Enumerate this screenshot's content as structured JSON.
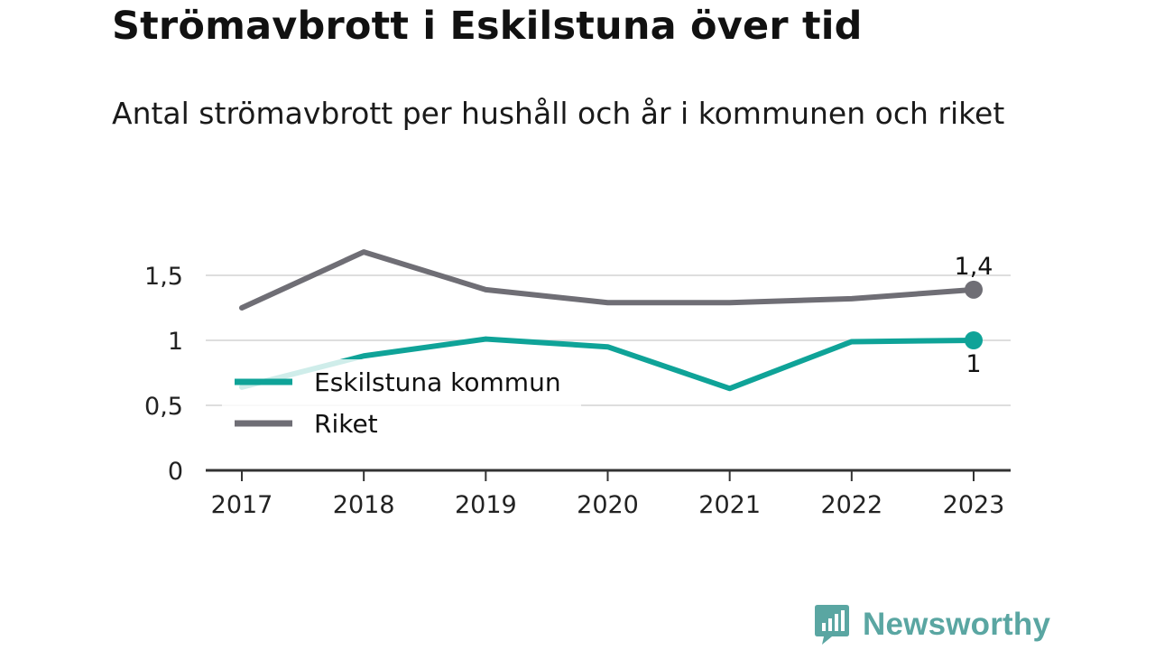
{
  "header": {
    "title": "Strömavbrott i Eskilstuna över tid",
    "subtitle": "Antal strömavbrott per hushåll och år i kommunen och riket"
  },
  "brand": {
    "name": "Newsworthy",
    "icon": "bar-chart-logo-icon",
    "color": "#5aa6a2"
  },
  "chart_data": {
    "type": "line",
    "x": [
      "2017",
      "2018",
      "2019",
      "2020",
      "2021",
      "2022",
      "2023"
    ],
    "ylim": [
      0,
      1.8
    ],
    "yticks": [
      {
        "value": 0,
        "label": "0"
      },
      {
        "value": 0.5,
        "label": "0,5"
      },
      {
        "value": 1,
        "label": "1"
      },
      {
        "value": 1.5,
        "label": "1,5"
      }
    ],
    "grid": true,
    "legend_position": "left-middle",
    "series": [
      {
        "name": "Eskilstuna kommun",
        "color": "#0fa398",
        "values": [
          0.64,
          0.88,
          1.01,
          0.95,
          0.63,
          0.99,
          1.0
        ],
        "end_label": "1",
        "end_label_position": "below"
      },
      {
        "name": "Riket",
        "color": "#6f6e75",
        "values": [
          1.25,
          1.68,
          1.39,
          1.29,
          1.29,
          1.32,
          1.39
        ],
        "end_label": "1,4",
        "end_label_position": "above"
      }
    ]
  }
}
